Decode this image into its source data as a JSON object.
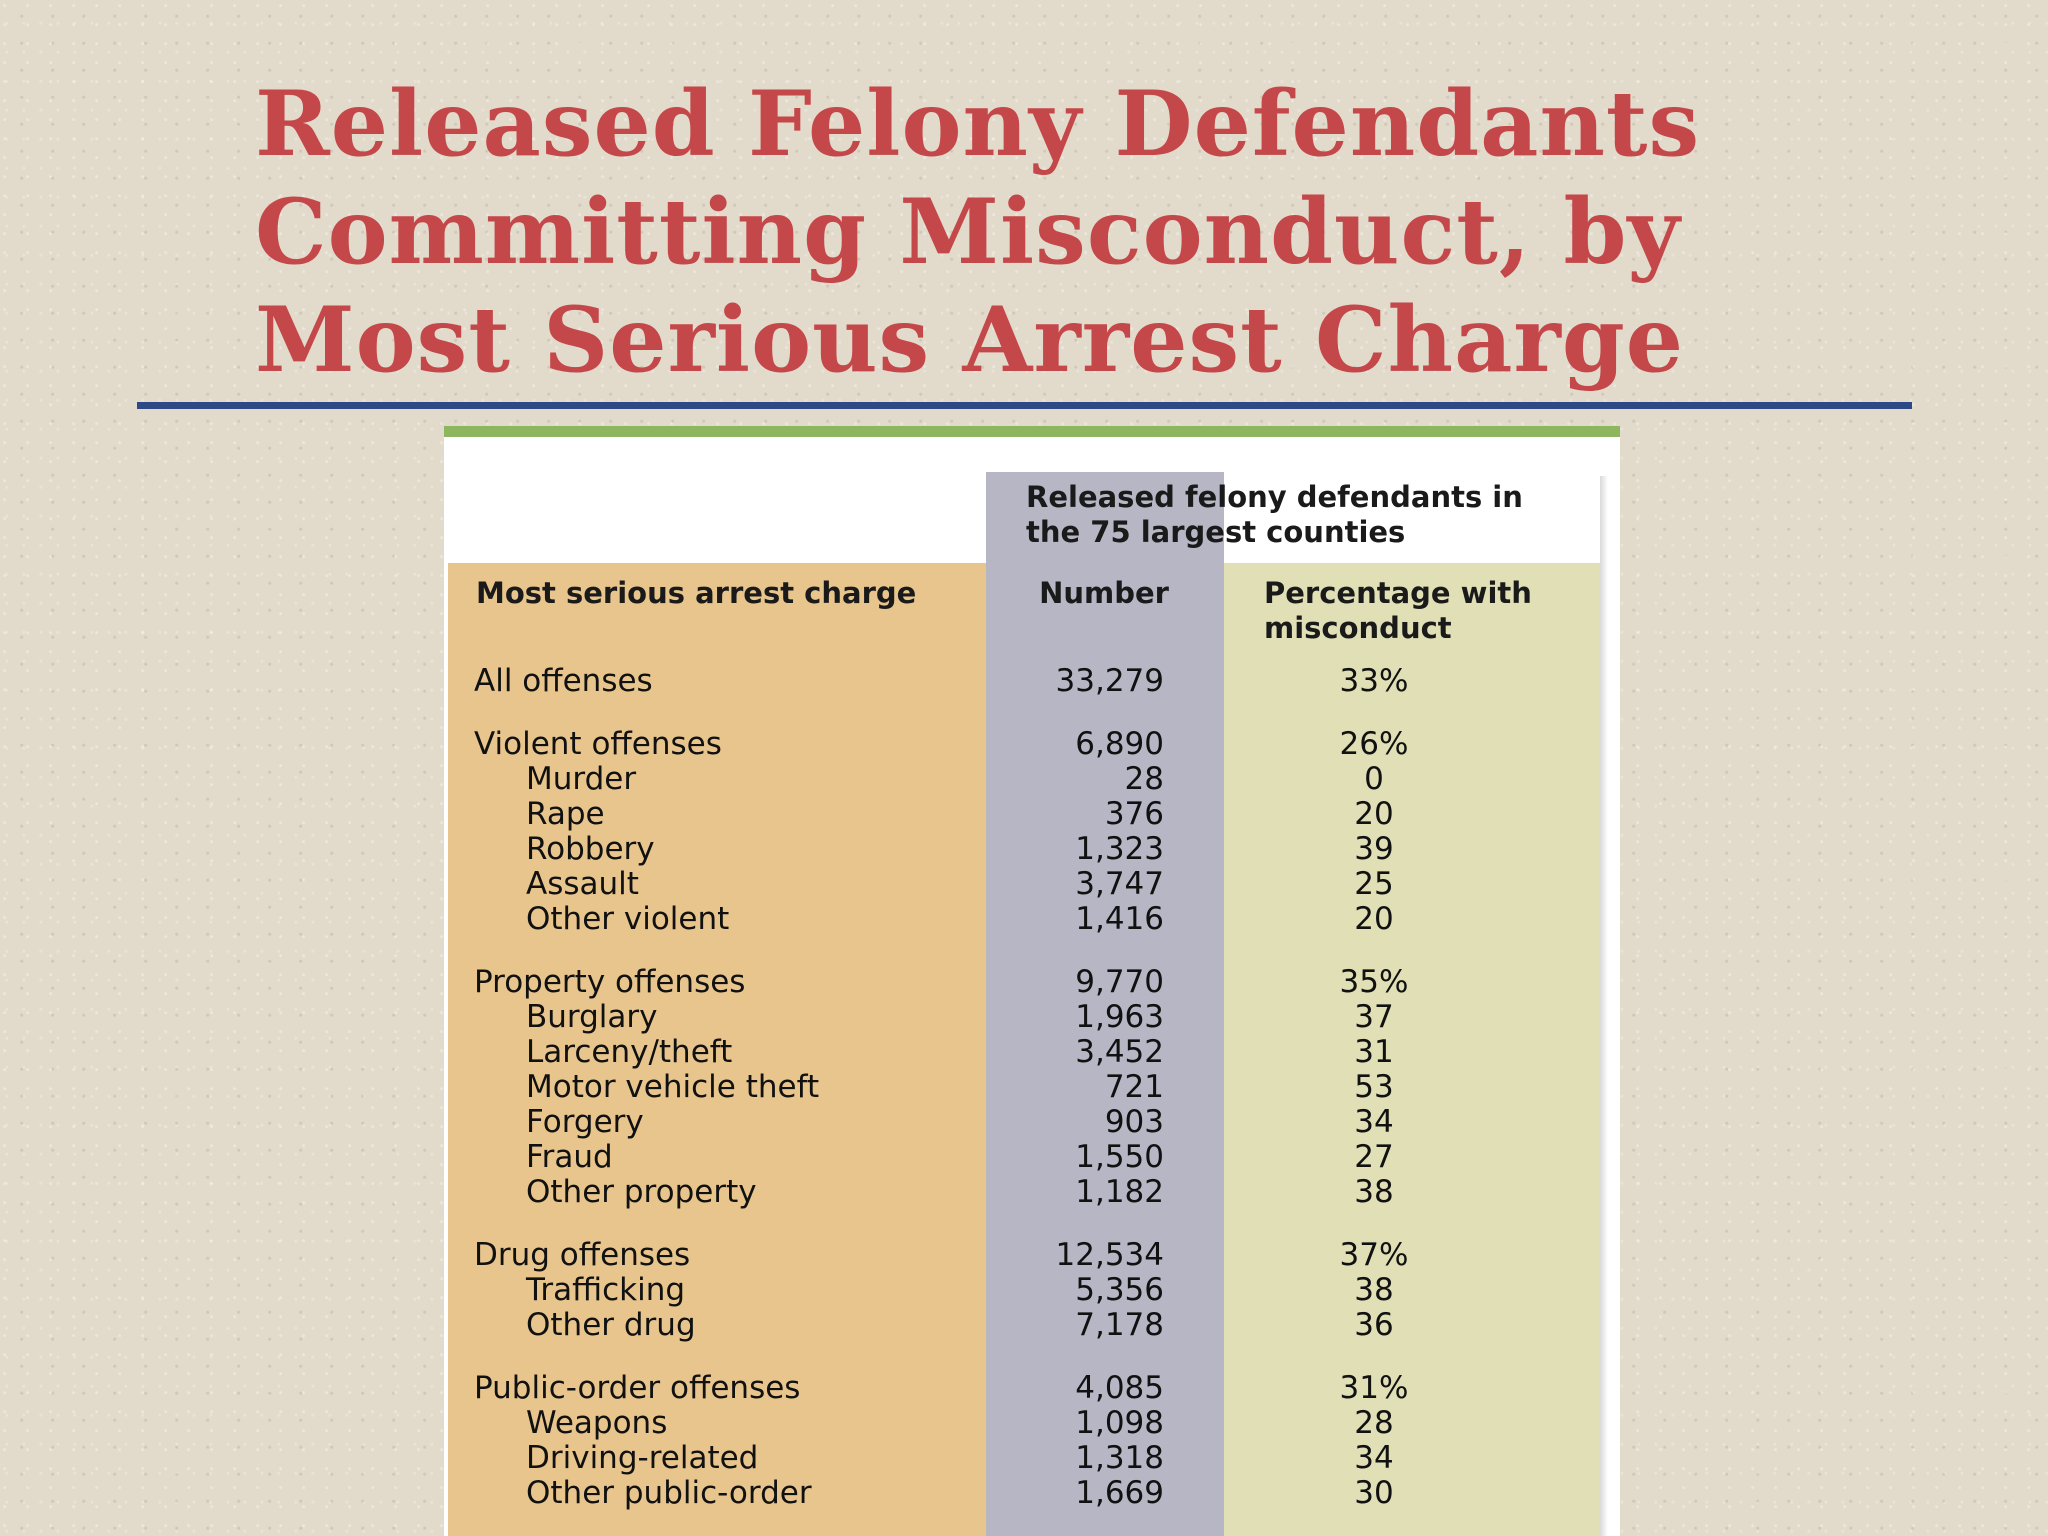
{
  "slide": {
    "title_lines": [
      "Released Felony Defendants",
      "Committing Misconduct, by",
      "Most Serious Arrest Charge"
    ]
  },
  "colors": {
    "title": "#c4474a",
    "rule": "#2d4a86",
    "top_bar": "#8db65f",
    "charge_column": "#e8c58c",
    "number_column": "#b7b6c5",
    "percentage_column": "#e0dfb6"
  },
  "table": {
    "group_header": "Released felony defendants in the 75 largest counties",
    "columns": {
      "charge": "Most serious arrest charge",
      "number": "Number",
      "percentage": "Percentage with misconduct"
    },
    "rows": [
      {
        "label": "All offenses",
        "number": "33,279",
        "pct": "33%",
        "level": 0
      },
      {
        "label": "Violent offenses",
        "number": "6,890",
        "pct": "26%",
        "level": 0
      },
      {
        "label": "Murder",
        "number": "28",
        "pct": "0",
        "level": 1
      },
      {
        "label": "Rape",
        "number": "376",
        "pct": "20",
        "level": 1
      },
      {
        "label": "Robbery",
        "number": "1,323",
        "pct": "39",
        "level": 1
      },
      {
        "label": "Assault",
        "number": "3,747",
        "pct": "25",
        "level": 1
      },
      {
        "label": "Other violent",
        "number": "1,416",
        "pct": "20",
        "level": 1
      },
      {
        "label": "Property offenses",
        "number": "9,770",
        "pct": "35%",
        "level": 0
      },
      {
        "label": "Burglary",
        "number": "1,963",
        "pct": "37",
        "level": 1
      },
      {
        "label": "Larceny/theft",
        "number": "3,452",
        "pct": "31",
        "level": 1
      },
      {
        "label": "Motor vehicle theft",
        "number": "721",
        "pct": "53",
        "level": 1
      },
      {
        "label": "Forgery",
        "number": "903",
        "pct": "34",
        "level": 1
      },
      {
        "label": "Fraud",
        "number": "1,550",
        "pct": "27",
        "level": 1
      },
      {
        "label": "Other property",
        "number": "1,182",
        "pct": "38",
        "level": 1
      },
      {
        "label": "Drug offenses",
        "number": "12,534",
        "pct": "37%",
        "level": 0
      },
      {
        "label": "Trafficking",
        "number": "5,356",
        "pct": "38",
        "level": 1
      },
      {
        "label": "Other drug",
        "number": "7,178",
        "pct": "36",
        "level": 1
      },
      {
        "label": "Public-order offenses",
        "number": "4,085",
        "pct": "31%",
        "level": 0
      },
      {
        "label": "Weapons",
        "number": "1,098",
        "pct": "28",
        "level": 1
      },
      {
        "label": "Driving-related",
        "number": "1,318",
        "pct": "34",
        "level": 1
      },
      {
        "label": "Other public-order",
        "number": "1,669",
        "pct": "30",
        "level": 1
      }
    ]
  }
}
